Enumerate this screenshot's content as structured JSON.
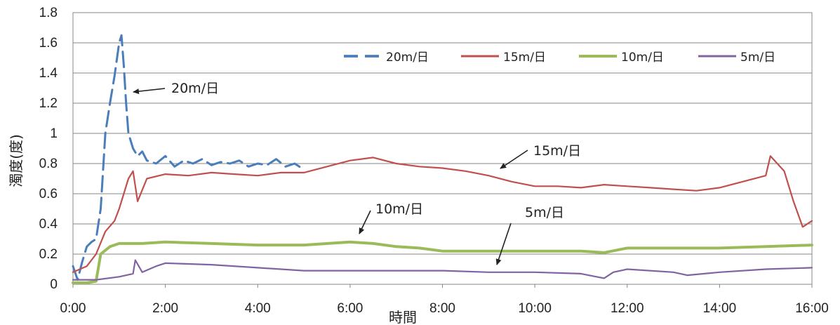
{
  "chart_data": {
    "type": "line",
    "title": "",
    "xlabel": "時間",
    "ylabel": "濁度(度)",
    "xlim": [
      0,
      16
    ],
    "ylim": [
      0,
      1.8
    ],
    "x_ticks": [
      "0:00",
      "2:00",
      "4:00",
      "6:00",
      "8:00",
      "10:00",
      "12:00",
      "14:00",
      "16:00"
    ],
    "y_ticks": [
      "0",
      "0.2",
      "0.4",
      "0.6",
      "0.8",
      "1",
      "1.2",
      "1.4",
      "1.6",
      "1.8"
    ],
    "grid": true,
    "legend_position": "top-right",
    "series": [
      {
        "name": "20m/日",
        "color": "#4a7ebb",
        "style": "dashed",
        "x": [
          0,
          0.1,
          0.2,
          0.3,
          0.4,
          0.5,
          0.6,
          0.7,
          0.8,
          0.9,
          1.0,
          1.05,
          1.1,
          1.15,
          1.2,
          1.3,
          1.4,
          1.5,
          1.6,
          1.8,
          2.0,
          2.2,
          2.4,
          2.6,
          2.8,
          3.0,
          3.2,
          3.4,
          3.6,
          3.8,
          4.0,
          4.2,
          4.4,
          4.6,
          4.8,
          5.0
        ],
        "y": [
          0.12,
          0.03,
          0.15,
          0.25,
          0.28,
          0.3,
          0.5,
          1.0,
          1.2,
          1.38,
          1.6,
          1.65,
          1.45,
          1.2,
          1.0,
          0.9,
          0.85,
          0.88,
          0.82,
          0.8,
          0.85,
          0.78,
          0.82,
          0.8,
          0.83,
          0.79,
          0.81,
          0.8,
          0.82,
          0.78,
          0.8,
          0.79,
          0.83,
          0.78,
          0.8,
          0.76
        ]
      },
      {
        "name": "15m/日",
        "color": "#c0504d",
        "style": "solid",
        "x": [
          0,
          0.3,
          0.5,
          0.7,
          0.9,
          1.0,
          1.1,
          1.2,
          1.3,
          1.4,
          1.6,
          2.0,
          2.5,
          3.0,
          3.5,
          4.0,
          4.5,
          5.0,
          5.5,
          6.0,
          6.5,
          7.0,
          7.5,
          8.0,
          8.5,
          9.0,
          9.5,
          10.0,
          10.5,
          11.0,
          11.5,
          12.0,
          12.5,
          13.0,
          13.5,
          14.0,
          14.5,
          15.0,
          15.1,
          15.4,
          15.6,
          15.8,
          16.0
        ],
        "y": [
          0.08,
          0.12,
          0.2,
          0.35,
          0.42,
          0.5,
          0.6,
          0.7,
          0.75,
          0.55,
          0.7,
          0.73,
          0.72,
          0.74,
          0.73,
          0.72,
          0.74,
          0.74,
          0.78,
          0.82,
          0.84,
          0.8,
          0.78,
          0.77,
          0.75,
          0.72,
          0.68,
          0.65,
          0.65,
          0.64,
          0.66,
          0.65,
          0.64,
          0.63,
          0.62,
          0.64,
          0.68,
          0.72,
          0.85,
          0.75,
          0.55,
          0.38,
          0.42
        ]
      },
      {
        "name": "10m/日",
        "color": "#9bbb59",
        "style": "solid",
        "x": [
          0,
          0.3,
          0.5,
          0.6,
          0.8,
          1.0,
          1.5,
          2.0,
          3.0,
          4.0,
          5.0,
          6.0,
          6.5,
          7.0,
          7.5,
          8.0,
          9.0,
          10.0,
          11.0,
          11.5,
          12.0,
          13.0,
          14.0,
          15.0,
          16.0
        ],
        "y": [
          0.01,
          0.01,
          0.02,
          0.2,
          0.25,
          0.27,
          0.27,
          0.28,
          0.27,
          0.26,
          0.26,
          0.28,
          0.27,
          0.25,
          0.24,
          0.22,
          0.22,
          0.22,
          0.22,
          0.21,
          0.24,
          0.24,
          0.24,
          0.25,
          0.26
        ]
      },
      {
        "name": "5m/日",
        "color": "#8064a2",
        "style": "solid",
        "x": [
          0,
          0.5,
          1.0,
          1.3,
          1.35,
          1.5,
          1.8,
          2.0,
          3.0,
          4.0,
          5.0,
          6.0,
          7.0,
          8.0,
          9.0,
          10.0,
          11.0,
          11.5,
          11.7,
          12.0,
          13.0,
          13.3,
          14.0,
          15.0,
          16.0
        ],
        "y": [
          0.03,
          0.03,
          0.05,
          0.07,
          0.16,
          0.08,
          0.12,
          0.14,
          0.13,
          0.11,
          0.09,
          0.09,
          0.09,
          0.09,
          0.08,
          0.08,
          0.07,
          0.04,
          0.08,
          0.1,
          0.08,
          0.06,
          0.08,
          0.1,
          0.11
        ]
      }
    ],
    "annotations": [
      {
        "text": "20m/日",
        "x": 1.3,
        "y": 1.3
      },
      {
        "text": "15m/日",
        "x": 9.2,
        "y": 0.76
      },
      {
        "text": "10m/日",
        "x": 6.1,
        "y": 0.34
      },
      {
        "text": "5m/日",
        "x": 9.1,
        "y": 0.14
      }
    ]
  }
}
